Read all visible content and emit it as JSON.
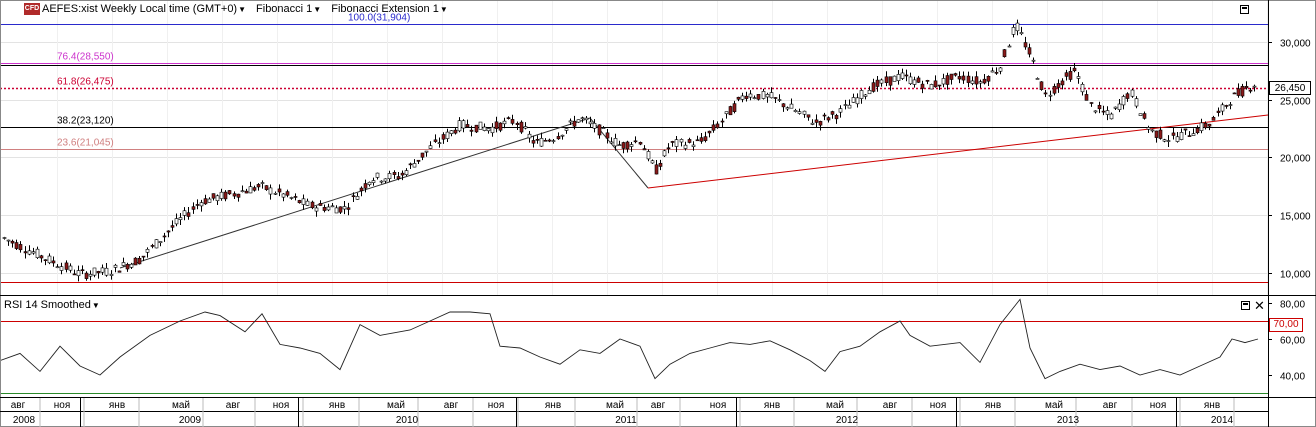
{
  "header": {
    "symbol": "AEFES:xist Weekly Local time (GMT+0)",
    "cfd_badge": "CFD",
    "indicator1": "Fibonacci 1",
    "indicator2": "Fibonacci Extension 1"
  },
  "fib_levels": [
    {
      "label": "100.0(31,904)",
      "price": 31904,
      "color": "#2a2acc"
    },
    {
      "label": "76.4(28,550)",
      "price": 28550,
      "color": "#cc33cc"
    },
    {
      "label": "61.8(26,475)",
      "price": 26475,
      "color": "#cc0033"
    },
    {
      "label": "38.2(23,120)",
      "price": 23120,
      "color": "#000000"
    },
    {
      "label": "23.6(21,045)",
      "price": 21045,
      "color": "#d08080"
    }
  ],
  "price_axis": {
    "ticks": [
      "30,000",
      "25,000",
      "20,000",
      "15,000",
      "10,000"
    ],
    "current": "26,450"
  },
  "rsi": {
    "title": "RSI 14 Smoothed",
    "ticks": [
      "80,00",
      "60,00",
      "40,00"
    ],
    "level_tag": "70,00"
  },
  "time_axis": {
    "months": [
      "авг",
      "ноя",
      "янв",
      "май",
      "авг",
      "ноя",
      "янв",
      "май",
      "авг",
      "ноя",
      "янв",
      "май",
      "авг",
      "ноя",
      "янв",
      "май",
      "авг",
      "ноя",
      "янв",
      "май",
      "авг",
      "ноя",
      "янв"
    ],
    "years": [
      "2008",
      "2009",
      "2010",
      "2011",
      "2012",
      "2013",
      "2014"
    ]
  },
  "colors": {
    "up_candle": "#ffffff",
    "down_candle": "#8b1a1a",
    "grid": "#bbbbbb",
    "trend": "#cc0000"
  }
}
